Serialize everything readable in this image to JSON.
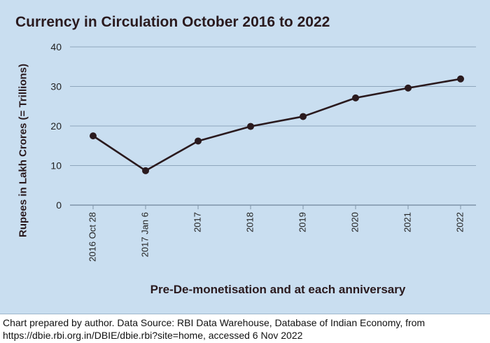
{
  "chart_data": {
    "type": "line",
    "title": "Currency in Circulation October 2016 to 2022",
    "xlabel": "Pre-De-monetisation and at each anniversary",
    "ylabel": "Rupees in Lakh Crores (= Trillions)",
    "categories": [
      "2016 Oct 28",
      "2017 Jan 6",
      "2017",
      "2018",
      "2019",
      "2020",
      "2021",
      "2022"
    ],
    "values": [
      17.5,
      8.7,
      16.2,
      19.9,
      22.4,
      27.1,
      29.6,
      31.9
    ],
    "ylim": [
      0,
      40
    ],
    "yticks": [
      0,
      10,
      20,
      30,
      40
    ],
    "grid": true,
    "line_color": "#2a1a1e",
    "background": "#c9def0"
  },
  "footer": {
    "line1": "Chart prepared by author. Data Source: RBI Data Warehouse, Database of Indian Economy, from",
    "line2": "https://dbie.rbi.org.in/DBIE/dbie.rbi?site=home, accessed 6 Nov 2022"
  }
}
